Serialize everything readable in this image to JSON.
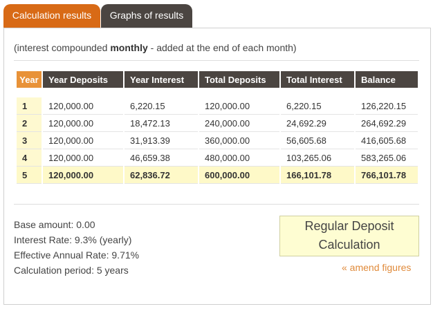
{
  "tabs": [
    {
      "label": "Calculation results",
      "active": true
    },
    {
      "label": "Graphs of results",
      "active": false
    }
  ],
  "note": {
    "prefix": "(interest compounded ",
    "emphasis": "monthly",
    "suffix": " - added at the end of each month)"
  },
  "table": {
    "headers": [
      "Year",
      "Year Deposits",
      "Year Interest",
      "Total Deposits",
      "Total Interest",
      "Balance"
    ],
    "rows": [
      [
        "1",
        "120,000.00",
        "6,220.15",
        "120,000.00",
        "6,220.15",
        "126,220.15"
      ],
      [
        "2",
        "120,000.00",
        "18,472.13",
        "240,000.00",
        "24,692.29",
        "264,692.29"
      ],
      [
        "3",
        "120,000.00",
        "31,913.39",
        "360,000.00",
        "56,605.68",
        "416,605.68"
      ],
      [
        "4",
        "120,000.00",
        "46,659.38",
        "480,000.00",
        "103,265.06",
        "583,265.06"
      ]
    ],
    "total_row": [
      "5",
      "120,000.00",
      "62,836.72",
      "600,000.00",
      "166,101.78",
      "766,101.78"
    ]
  },
  "summary": {
    "base_amount": "Base amount: 0.00",
    "interest_rate": "Interest Rate: 9.3% (yearly)",
    "effective_rate": "Effective Annual Rate: 9.71%",
    "period": "Calculation period: 5 years"
  },
  "calc_box": {
    "line1": "Regular Deposit",
    "line2": "Calculation"
  },
  "amend_link": "« amend figures",
  "colors": {
    "active_tab": "#d86a16",
    "header": "#4b4541",
    "year_header": "#e89238",
    "highlight": "#fef9c8",
    "link": "#e08a3a"
  }
}
